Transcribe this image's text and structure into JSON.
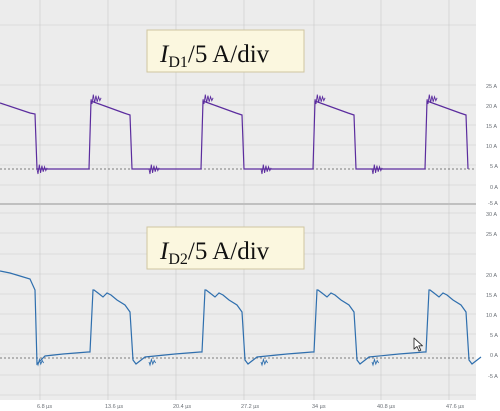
{
  "scope": {
    "colors": {
      "background": "#ececec",
      "grid": "#c9c9c9",
      "divider": "#9a9a9a",
      "ref_line": "#555555",
      "trace1": "#5b2c9e",
      "trace2": "#2f6fae"
    },
    "time_labels": [
      "6.8 µs",
      "13.6 µs",
      "20.4 µs",
      "27.2 µs",
      "34 µs",
      "40.8 µs",
      "47.6 µs"
    ],
    "channels": [
      {
        "label_main": "I",
        "label_sub": "D1",
        "label_unit": "/5 A/div",
        "axis_labels": [
          "25 A",
          "20 A",
          "15 A",
          "10 A",
          "5 A",
          "0 A",
          "-5 A"
        ]
      },
      {
        "label_main": "I",
        "label_sub": "D2",
        "label_unit": "/5 A/div",
        "axis_labels": [
          "30 A",
          "25 A",
          "20 A",
          "15 A",
          "10 A",
          "5 A",
          "0 A",
          "-5 A"
        ]
      }
    ],
    "cursor_icon": "mouse-pointer-icon"
  }
}
